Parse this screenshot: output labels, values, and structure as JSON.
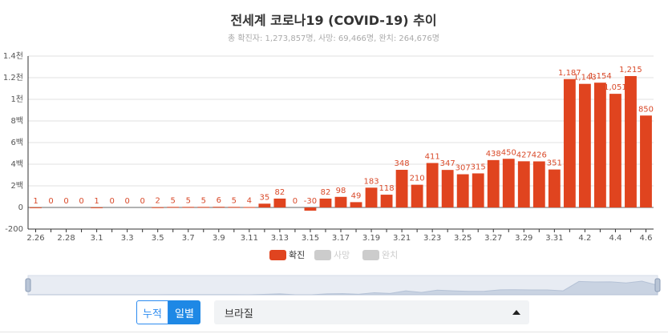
{
  "chart_data": {
    "type": "bar",
    "title": "전세계 코로나19 (COVID-19) 추이",
    "subtitle": "총 확진자: 1,273,857명, 사망: 69,466명, 완치: 264,676명",
    "categories": [
      "2.26",
      "2.27",
      "2.28",
      "2.29",
      "3.1",
      "3.2",
      "3.3",
      "3.4",
      "3.5",
      "3.6",
      "3.7",
      "3.8",
      "3.9",
      "3.10",
      "3.11",
      "3.12",
      "3.13",
      "3.14",
      "3.15",
      "3.16",
      "3.17",
      "3.18",
      "3.19",
      "3.20",
      "3.21",
      "3.22",
      "3.23",
      "3.24",
      "3.25",
      "3.26",
      "3.27",
      "3.28",
      "3.29",
      "3.30",
      "3.31",
      "4.1",
      "4.2",
      "4.3",
      "4.4",
      "4.5",
      "4.6"
    ],
    "x_tick_labels": [
      "2.26",
      "2.28",
      "3.1",
      "3.3",
      "3.5",
      "3.7",
      "3.9",
      "3.11",
      "3.13",
      "3.15",
      "3.17",
      "3.19",
      "3.21",
      "3.23",
      "3.25",
      "3.27",
      "3.29",
      "3.31",
      "4.2",
      "4.4",
      "4.6"
    ],
    "series": [
      {
        "name": "확진",
        "color": "#e0441f",
        "values": [
          1,
          0,
          0,
          0,
          1,
          0,
          0,
          0,
          2,
          5,
          5,
          5,
          6,
          5,
          4,
          35,
          82,
          0,
          -30,
          82,
          98,
          49,
          183,
          118,
          348,
          210,
          411,
          347,
          307,
          315,
          438,
          450,
          427,
          426,
          351,
          1187,
          1143,
          1154,
          1051,
          1215,
          850
        ],
        "labels": [
          "1",
          "0",
          "0",
          "0",
          "1",
          "0",
          "0",
          "0",
          "2",
          "5",
          "5",
          "5",
          "6",
          "5",
          "4",
          "35",
          "82",
          "0",
          "-30",
          "82",
          "98",
          "49",
          "183",
          "118",
          "348",
          "210",
          "411",
          "347",
          "307",
          "315",
          "438",
          "450",
          "427",
          "426",
          "351",
          "1,187",
          "1,143",
          "1,154",
          "1,051",
          "1,215",
          "850"
        ]
      }
    ],
    "legend": [
      {
        "name": "확진",
        "color": "#e0441f",
        "active": true
      },
      {
        "name": "사망",
        "color": "#cccccc",
        "active": false
      },
      {
        "name": "완치",
        "color": "#cccccc",
        "active": false
      }
    ],
    "legend_position": "bottom",
    "ylim": [
      -200,
      1400
    ],
    "y_ticks": [
      -200,
      0,
      200,
      400,
      600,
      800,
      1000,
      1200,
      1400
    ],
    "y_tick_labels": [
      "-200",
      "0",
      "2백",
      "4백",
      "6백",
      "8백",
      "1천",
      "1.2천",
      "1.4천"
    ],
    "grid": true,
    "zoom_range": [
      0,
      1
    ]
  },
  "controls": {
    "cumulative_label": "누적",
    "monthly_label": "일별",
    "country_selected": "브라질"
  }
}
